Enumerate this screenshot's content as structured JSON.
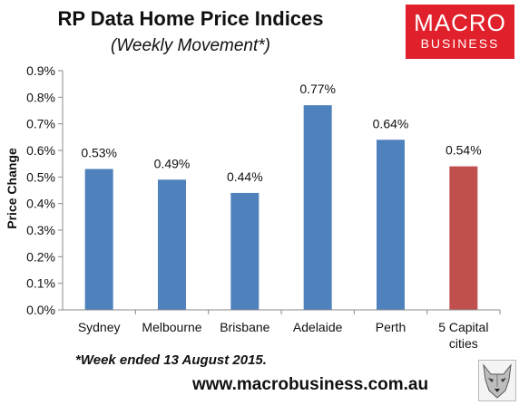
{
  "header": {
    "title": "RP Data Home Price Indices",
    "subtitle": "(Weekly Movement*)"
  },
  "logo": {
    "line1": "MACRO",
    "line2": "BUSINESS",
    "color": "#e0202a"
  },
  "footnote": "*Week ended 13 August 2015.",
  "website": "www.macrobusiness.com.au",
  "wolf_icon": "wolf-icon",
  "chart_data": {
    "type": "bar",
    "title": "RP Data Home Price Indices",
    "subtitle": "(Weekly Movement*)",
    "xlabel": "",
    "ylabel": "Price Change",
    "ylim": [
      0,
      0.9
    ],
    "yticks": [
      0.0,
      0.1,
      0.2,
      0.3,
      0.4,
      0.5,
      0.6,
      0.7,
      0.8,
      0.9
    ],
    "ytick_labels": [
      "0.0%",
      "0.1%",
      "0.2%",
      "0.3%",
      "0.4%",
      "0.5%",
      "0.6%",
      "0.7%",
      "0.8%",
      "0.9%"
    ],
    "categories": [
      [
        "Sydney"
      ],
      [
        "Melbourne"
      ],
      [
        "Brisbane"
      ],
      [
        "Adelaide"
      ],
      [
        "Perth"
      ],
      [
        "5 Capital",
        "cities"
      ]
    ],
    "values": [
      0.53,
      0.49,
      0.44,
      0.77,
      0.64,
      0.54
    ],
    "data_labels": [
      "0.53%",
      "0.49%",
      "0.44%",
      "0.77%",
      "0.64%",
      "0.54%"
    ],
    "bar_colors": [
      "#4f81bd",
      "#4f81bd",
      "#4f81bd",
      "#4f81bd",
      "#4f81bd",
      "#c0504d"
    ],
    "grid": false,
    "legend": "none"
  }
}
